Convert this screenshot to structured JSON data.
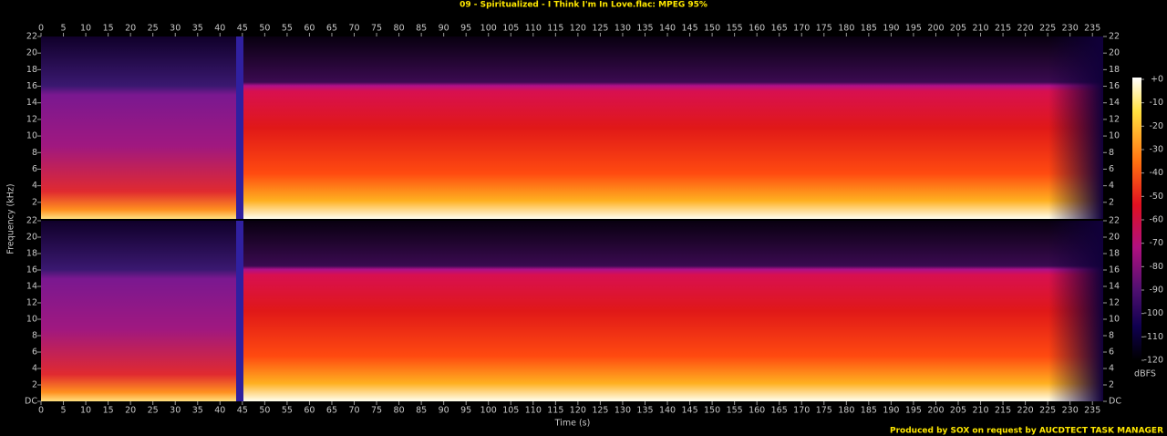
{
  "chart_data": {
    "type": "spectrogram",
    "title": "09 - Spiritualized - I Think I'm In Love.flac: MPEG 95%",
    "x_label": "Time (s)",
    "y_label": "Frequency (kHz)",
    "xlim": [
      0,
      237.4
    ],
    "xticks": [
      0,
      5,
      10,
      15,
      20,
      25,
      30,
      35,
      40,
      45,
      50,
      55,
      60,
      65,
      70,
      75,
      80,
      85,
      90,
      95,
      100,
      105,
      110,
      115,
      120,
      125,
      130,
      135,
      140,
      145,
      150,
      155,
      160,
      165,
      170,
      175,
      180,
      185,
      190,
      195,
      200,
      205,
      210,
      215,
      220,
      225,
      230,
      235
    ],
    "panels": [
      {
        "ylim": [
          0,
          22
        ],
        "yticks": [
          2,
          4,
          6,
          8,
          10,
          12,
          14,
          16,
          18,
          20,
          22
        ]
      },
      {
        "ylim": [
          0,
          22
        ],
        "yticks": [
          {
            "value": 0,
            "label": "DC"
          },
          2,
          4,
          6,
          8,
          10,
          12,
          14,
          16,
          18,
          20,
          22
        ]
      }
    ],
    "colorbar": {
      "label": "dBFS",
      "lim": [
        -120,
        0
      ],
      "ticks": [
        {
          "value": 0,
          "label": "+0"
        },
        -10,
        -20,
        -30,
        -40,
        -50,
        -60,
        -70,
        -80,
        -90,
        -100,
        -110,
        -120
      ]
    },
    "footer": "Produced by SOX on request by AUCDTECT TASK MANAGER"
  }
}
